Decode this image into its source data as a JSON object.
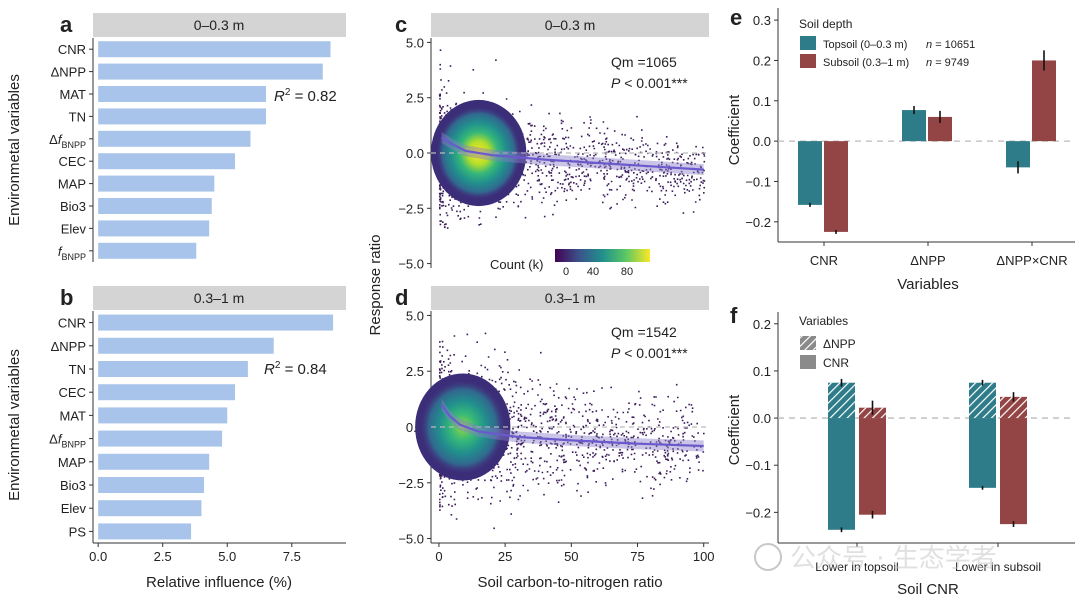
{
  "panels": {
    "a": {
      "letter": "a",
      "strip": "0–0.3 m",
      "r2": "= 0.82",
      "r2_label": "R"
    },
    "b": {
      "letter": "b",
      "strip": "0.3–1 m",
      "r2": "= 0.84",
      "r2_label": "R"
    },
    "c": {
      "letter": "c",
      "strip": "0–0.3 m",
      "qm": "Qm =1065",
      "p_label": "P",
      "p_value": "< 0.001***"
    },
    "d": {
      "letter": "d",
      "strip": "0.3–1 m",
      "qm": "Qm =1542",
      "p_label": "P",
      "p_value": "< 0.001***"
    },
    "e": {
      "letter": "e"
    },
    "f": {
      "letter": "f"
    }
  },
  "labels": {
    "ab_ylabel": "Environmetal variables",
    "ab_xlabel": "Relative influence (%)",
    "cd_ylabel": "Response ratio",
    "cd_xlabel": "Soil carbon-to-nitrogen ratio",
    "colorbar_title": "Count (k)",
    "colorbar_ticks": [
      "0",
      "40",
      "80"
    ],
    "e_ylabel": "Coefficient",
    "e_xlabel": "Variables",
    "e_legend_title": "Soil depth",
    "e_legend_topsoil": "Topsoil (0–0.3 m)",
    "e_legend_subsoil": "Subsoil (0.3–1 m)",
    "e_n_topsoil": "= 10651",
    "e_n_subsoil": "= 9749",
    "n_label": "n",
    "f_ylabel": "Coefficient",
    "f_xlabel": "Soil CNR",
    "f_legend_title": "Variables",
    "f_legend_dnpp": "ΔNPP",
    "f_legend_cnr": "CNR",
    "watermark": "公众号 · 生态学者"
  },
  "colors": {
    "bar_blue": "#a9c4ea",
    "strip_grey": "#d4d4d4",
    "teal": "#2e7c8a",
    "red": "#934444"
  },
  "chart_data": [
    {
      "id": "a",
      "type": "bar",
      "orientation": "horizontal",
      "categories": [
        "CNR",
        "ΔNPP",
        "MAT",
        "TN",
        "ΔfBNPP",
        "CEC",
        "MAP",
        "Bio3",
        "Elev",
        "fBNPP"
      ],
      "values": [
        9.0,
        8.7,
        6.5,
        6.5,
        5.9,
        5.3,
        4.5,
        4.4,
        4.3,
        3.8
      ],
      "xlim": [
        -0.2,
        9.6
      ],
      "xticks": [
        "0.0",
        "2.5",
        "5.0",
        "7.5"
      ]
    },
    {
      "id": "b",
      "type": "bar",
      "orientation": "horizontal",
      "categories": [
        "CNR",
        "ΔNPP",
        "TN",
        "CEC",
        "MAT",
        "ΔfBNPP",
        "MAP",
        "Bio3",
        "Elev",
        "PS"
      ],
      "values": [
        9.1,
        6.8,
        5.8,
        5.3,
        5.0,
        4.8,
        4.3,
        4.1,
        4.0,
        3.6
      ],
      "xlim": [
        -0.2,
        9.6
      ],
      "xticks": [
        "0.0",
        "2.5",
        "5.0",
        "7.5"
      ]
    },
    {
      "id": "c",
      "type": "scatter",
      "style": "density",
      "xlim": [
        -3,
        102
      ],
      "ylim": [
        -5.2,
        5.2
      ],
      "xticks": [
        "0",
        "25",
        "50",
        "75",
        "100"
      ],
      "yticks": [
        "-5.0",
        "-2.5",
        "0.0",
        "2.5",
        "5.0"
      ],
      "fit_line": {
        "x": [
          1,
          5,
          10,
          20,
          40,
          60,
          80,
          100
        ],
        "y": [
          0.7,
          0.4,
          0.1,
          -0.1,
          -0.3,
          -0.45,
          -0.6,
          -0.75
        ]
      }
    },
    {
      "id": "d",
      "type": "scatter",
      "style": "density",
      "xlim": [
        -3,
        102
      ],
      "ylim": [
        -5.2,
        5.2
      ],
      "xticks": [
        "0",
        "25",
        "50",
        "75",
        "100"
      ],
      "yticks": [
        "-5.0",
        "-2.5",
        "0.0",
        "2.5",
        "5.0"
      ],
      "fit_line": {
        "x": [
          1,
          4,
          8,
          15,
          30,
          50,
          75,
          100
        ],
        "y": [
          1.0,
          0.5,
          0.1,
          -0.2,
          -0.45,
          -0.6,
          -0.75,
          -0.85
        ]
      }
    },
    {
      "id": "e",
      "type": "bar",
      "categories": [
        "CNR",
        "ΔNPP",
        "ΔNPP×CNR"
      ],
      "series": [
        {
          "name": "Topsoil (0–0.3 m)",
          "values": [
            -0.158,
            0.077,
            -0.065
          ],
          "errors": [
            0.005,
            0.01,
            0.015
          ]
        },
        {
          "name": "Subsoil (0.3–1 m)",
          "values": [
            -0.225,
            0.06,
            0.2
          ],
          "errors": [
            0.005,
            0.015,
            0.025
          ]
        }
      ],
      "ylim": [
        -0.25,
        0.33
      ],
      "yticks": [
        "-0.2",
        "-0.1",
        "0.0",
        "0.1",
        "0.2",
        "0.3"
      ]
    },
    {
      "id": "f",
      "type": "bar",
      "categories": [
        "Lower in topsoil",
        "Lower in subsoil"
      ],
      "series": [
        {
          "name": "ΔNPP",
          "values": [
            0.075,
            0.075
          ],
          "errors": [
            0.008,
            0.006
          ]
        },
        {
          "name": "CNR",
          "values": [
            -0.237,
            -0.148
          ],
          "errors": [
            0.005,
            0.004
          ]
        },
        {
          "name": "ΔNPP",
          "values": [
            0.022,
            0.045
          ],
          "errors": [
            0.015,
            0.01
          ]
        },
        {
          "name": "CNR",
          "values": [
            -0.205,
            -0.225
          ],
          "errors": [
            0.008,
            0.006
          ]
        }
      ],
      "ylim": [
        -0.265,
        0.225
      ],
      "yticks": [
        "-0.2",
        "-0.1",
        "0.0",
        "0.1",
        "0.2"
      ]
    }
  ]
}
